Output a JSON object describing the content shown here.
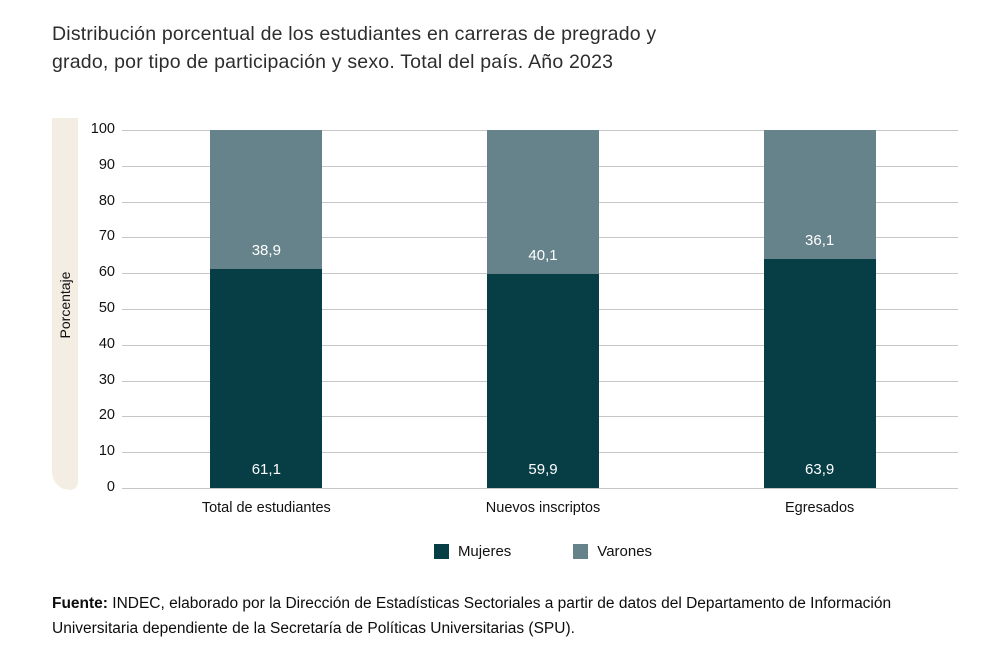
{
  "title": {
    "line1": "Distribución porcentual de los estudiantes en carreras de pregrado y",
    "line2": "grado, por tipo de participación y sexo. Total del país. Año 2023"
  },
  "accent_band_color": "#f4ede3",
  "gridline_color": "#c7c7c7",
  "chart_data": {
    "type": "bar",
    "stacked": true,
    "title": "Distribución porcentual de los estudiantes en carreras de pregrado y grado, por tipo de participación y sexo. Total del país. Año 2023",
    "categories": [
      "Total de estudiantes",
      "Nuevos inscriptos",
      "Egresados"
    ],
    "series": [
      {
        "name": "Mujeres",
        "color": "#073e46",
        "values": [
          61.1,
          59.9,
          63.9
        ],
        "labels": [
          "61,1",
          "59,9",
          "63,9"
        ]
      },
      {
        "name": "Varones",
        "color": "#66838b",
        "values": [
          38.9,
          40.1,
          36.1
        ],
        "labels": [
          "38,9",
          "40,1",
          "36,1"
        ]
      }
    ],
    "xlabel": "",
    "ylabel": "Porcentaje",
    "ylim": [
      0,
      100
    ],
    "ytick_step": 10,
    "grid": true,
    "legend_position": "bottom"
  },
  "legend": {
    "items": [
      {
        "label": "Mujeres"
      },
      {
        "label": "Varones"
      }
    ]
  },
  "footer": {
    "bold": "Fuente:",
    "text": " INDEC, elaborado por la Dirección de Estadísticas Sectoriales a partir de datos del Departamento de Información Universitaria dependiente de la Secretaría de Políticas Universitarias (SPU)."
  }
}
